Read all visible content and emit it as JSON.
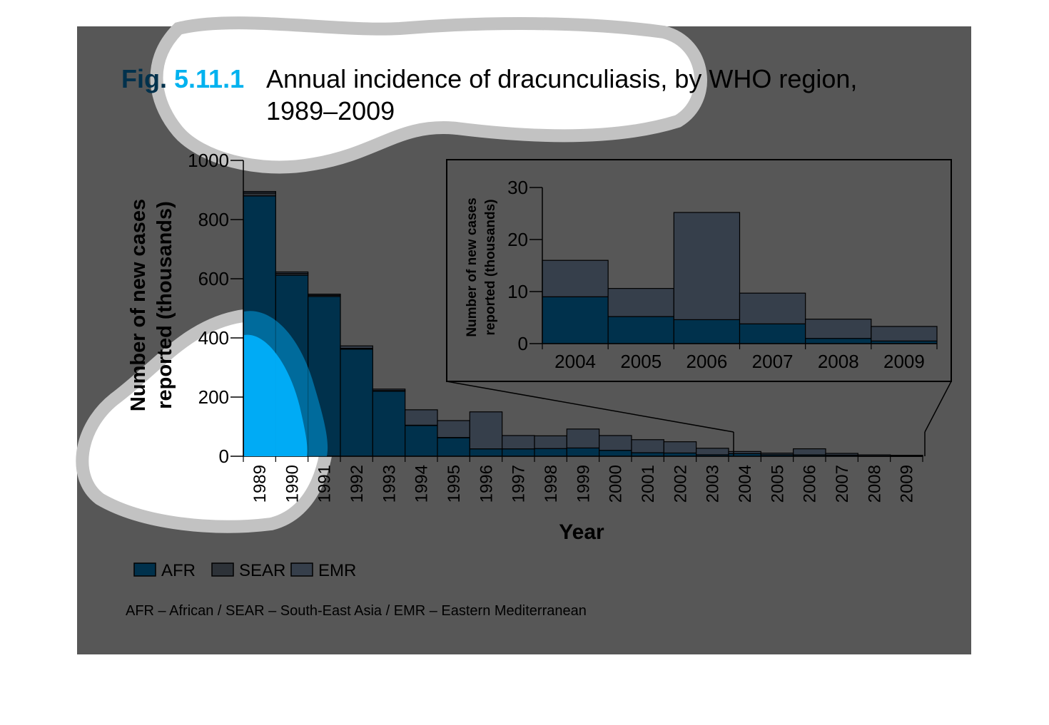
{
  "figure": {
    "number": "Fig. 5.11.1",
    "title_line1": "Annual incidence of dracunculiasis, by WHO region,",
    "title_line2": "1989–2009",
    "footnote": "AFR – African / SEAR – South-East Asia / EMR – Eastern Mediterranean"
  },
  "colors": {
    "background": "#575757",
    "AFR": "#00314c",
    "SEAR": "#2d3238",
    "EMR": "#363f4b",
    "fig_number_dark": "#00314c",
    "fig_number_accent": "#00b2ef",
    "title_text": "#000000",
    "light_overlay": "#ffffff",
    "overlay_border": "#c2c2c2",
    "blue_overlay": "#00b3ff"
  },
  "legend": [
    {
      "key": "AFR",
      "label": "AFR"
    },
    {
      "key": "SEAR",
      "label": "SEAR"
    },
    {
      "key": "EMR",
      "label": "EMR"
    }
  ],
  "chart_data": [
    {
      "type": "bar",
      "stacked": true,
      "categories": [
        "1989",
        "1990",
        "1991",
        "1992",
        "1993",
        "1994",
        "1995",
        "1996",
        "1997",
        "1998",
        "1999",
        "2000",
        "2001",
        "2002",
        "2003",
        "2004",
        "2005",
        "2006",
        "2007",
        "2008",
        "2009"
      ],
      "series": [
        {
          "name": "AFR",
          "values": [
            880,
            612,
            540,
            362,
            220,
            104,
            63,
            25,
            25,
            26,
            28,
            20,
            12,
            11,
            5,
            9,
            5.2,
            4.6,
            3.8,
            1.0,
            0.5
          ]
        },
        {
          "name": "SEAR",
          "values": [
            10,
            6,
            4,
            3,
            2,
            1,
            0.5,
            0,
            0,
            0,
            0,
            0,
            0,
            0,
            0,
            0,
            0,
            0,
            0,
            0,
            0
          ]
        },
        {
          "name": "EMR",
          "values": [
            5,
            5,
            4,
            8,
            5,
            52,
            57,
            125,
            45,
            43,
            64,
            50,
            44,
            38,
            22,
            7,
            5.4,
            20.6,
            5.9,
            3.7,
            2.8
          ]
        }
      ],
      "xlabel": "Year",
      "ylabel_line1": "Number of new cases",
      "ylabel_line2": "reported (thousands)",
      "yticks": [
        0,
        200,
        400,
        600,
        800,
        1000
      ],
      "ylim": [
        0,
        1000
      ],
      "grid": false
    },
    {
      "type": "bar",
      "stacked": true,
      "categories": [
        "2004",
        "2005",
        "2006",
        "2007",
        "2008",
        "2009"
      ],
      "series": [
        {
          "name": "AFR",
          "values": [
            9.0,
            5.2,
            4.6,
            3.8,
            1.0,
            0.5
          ]
        },
        {
          "name": "EMR",
          "values": [
            7.0,
            5.4,
            20.6,
            5.9,
            3.7,
            2.8
          ]
        }
      ],
      "ylabel_line1": "Number of new cases",
      "ylabel_line2": "reported (thousands)",
      "yticks": [
        0,
        10,
        20,
        30
      ],
      "ylim": [
        0,
        30
      ],
      "grid": false
    }
  ]
}
